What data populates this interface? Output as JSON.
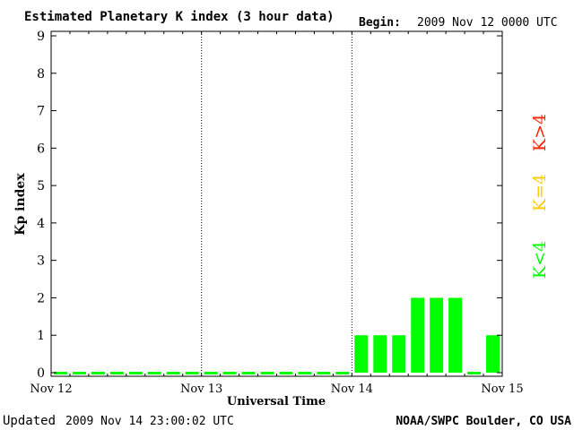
{
  "header": {
    "title": "Estimated Planetary K index (3 hour data)",
    "begin_label": "Begin:",
    "begin_value": "2009 Nov 12 0000 UTC"
  },
  "footer": {
    "updated_label": "Updated",
    "updated_value": "2009 Nov 14 23:00:02 UTC",
    "credit": "NOAA/SWPC Boulder, CO USA"
  },
  "legend": [
    {
      "label": "K<4",
      "color": "#00ff00"
    },
    {
      "label": "K=4",
      "color": "#ffcc00"
    },
    {
      "label": "K>4",
      "color": "#ff2200"
    }
  ],
  "chart_data": {
    "type": "bar",
    "title": "Estimated Planetary K index (3 hour data)",
    "xlabel": "Universal Time",
    "ylabel": "Kp index",
    "ylim": [
      0,
      9
    ],
    "yticks": [
      "0",
      "1",
      "2",
      "3",
      "4",
      "5",
      "6",
      "7",
      "8",
      "9"
    ],
    "xticks": [
      "Nov 12",
      "Nov 13",
      "Nov 14",
      "Nov 15"
    ],
    "grid": "vertical dotted at day boundaries",
    "values": [
      0,
      0,
      0,
      0,
      0,
      0,
      0,
      0,
      0,
      0,
      0,
      0,
      0,
      0,
      0,
      0,
      1,
      1,
      1,
      2,
      2,
      2,
      0,
      1
    ],
    "bar_color": "#00ff00"
  }
}
